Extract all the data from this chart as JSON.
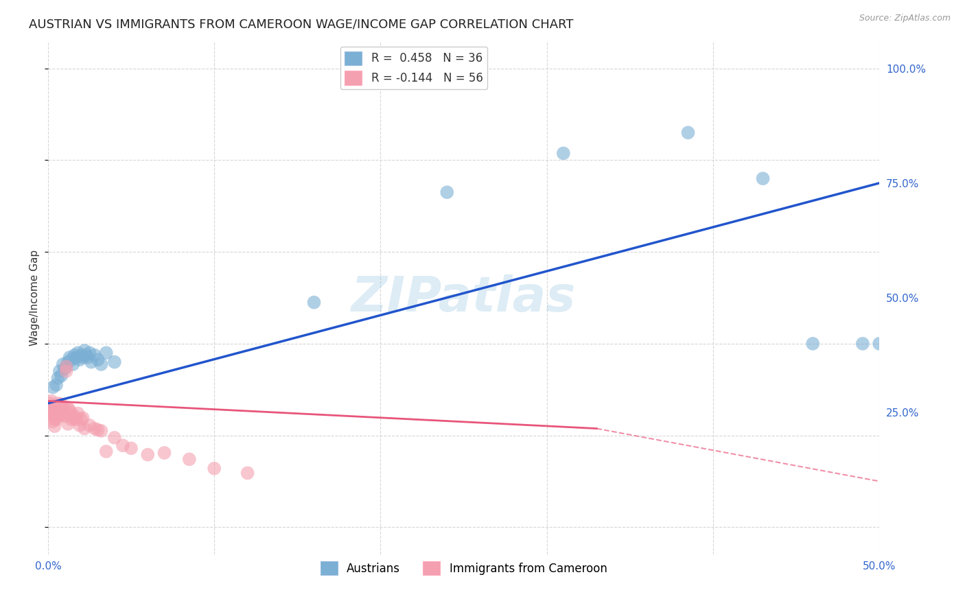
{
  "title": "AUSTRIAN VS IMMIGRANTS FROM CAMEROON WAGE/INCOME GAP CORRELATION CHART",
  "source": "Source: ZipAtlas.com",
  "ylabel": "Wage/Income Gap",
  "blue_color": "#7BAFD4",
  "pink_color": "#F4A0B0",
  "blue_line_color": "#2255CC",
  "pink_line_color": "#E8557A",
  "watermark": "ZIPatlas",
  "title_fontsize": 13,
  "label_fontsize": 11,
  "tick_fontsize": 11,
  "xlim": [
    0.0,
    0.5
  ],
  "ylim": [
    -0.06,
    1.06
  ],
  "blue_line_x0": 0.0,
  "blue_line_y0": 0.27,
  "blue_line_x1": 0.5,
  "blue_line_y1": 0.75,
  "pink_line_x0": 0.0,
  "pink_line_y0": 0.275,
  "pink_line_solid_x1": 0.33,
  "pink_line_y_at_solid_x1": 0.215,
  "pink_line_x1": 0.5,
  "pink_line_y1": 0.1,
  "austrians_x": [
    0.003,
    0.005,
    0.006,
    0.007,
    0.008,
    0.009,
    0.01,
    0.011,
    0.012,
    0.013,
    0.014,
    0.015,
    0.016,
    0.017,
    0.018,
    0.019,
    0.02,
    0.021,
    0.022,
    0.023,
    0.024,
    0.025,
    0.026,
    0.028,
    0.03,
    0.032,
    0.035,
    0.04,
    0.16,
    0.24,
    0.31,
    0.385,
    0.43,
    0.46,
    0.49,
    0.5
  ],
  "austrians_y": [
    0.305,
    0.31,
    0.325,
    0.34,
    0.33,
    0.355,
    0.345,
    0.35,
    0.36,
    0.37,
    0.365,
    0.355,
    0.375,
    0.37,
    0.38,
    0.365,
    0.375,
    0.37,
    0.385,
    0.375,
    0.37,
    0.38,
    0.36,
    0.375,
    0.365,
    0.355,
    0.38,
    0.36,
    0.49,
    0.73,
    0.815,
    0.86,
    0.76,
    0.4,
    0.4,
    0.4
  ],
  "cameroon_x": [
    0.001,
    0.002,
    0.002,
    0.003,
    0.003,
    0.003,
    0.004,
    0.004,
    0.004,
    0.005,
    0.005,
    0.005,
    0.005,
    0.006,
    0.006,
    0.006,
    0.007,
    0.007,
    0.007,
    0.008,
    0.008,
    0.008,
    0.009,
    0.009,
    0.01,
    0.01,
    0.011,
    0.011,
    0.012,
    0.012,
    0.013,
    0.014,
    0.014,
    0.015,
    0.016,
    0.017,
    0.018,
    0.019,
    0.02,
    0.021,
    0.022,
    0.025,
    0.028,
    0.03,
    0.032,
    0.035,
    0.04,
    0.045,
    0.05,
    0.06,
    0.07,
    0.085,
    0.1,
    0.12,
    0.003,
    0.004
  ],
  "cameroon_y": [
    0.27,
    0.275,
    0.255,
    0.265,
    0.25,
    0.24,
    0.26,
    0.245,
    0.235,
    0.265,
    0.255,
    0.245,
    0.235,
    0.255,
    0.245,
    0.27,
    0.255,
    0.265,
    0.245,
    0.26,
    0.25,
    0.268,
    0.255,
    0.245,
    0.26,
    0.242,
    0.35,
    0.34,
    0.26,
    0.225,
    0.255,
    0.248,
    0.235,
    0.238,
    0.242,
    0.235,
    0.248,
    0.222,
    0.235,
    0.238,
    0.215,
    0.222,
    0.215,
    0.212,
    0.21,
    0.165,
    0.195,
    0.178,
    0.172,
    0.158,
    0.162,
    0.148,
    0.128,
    0.118,
    0.23,
    0.22
  ],
  "legend1_r": "R =  0.458",
  "legend1_n": "N = 36",
  "legend2_r": "R = -0.144",
  "legend2_n": "N = 56"
}
